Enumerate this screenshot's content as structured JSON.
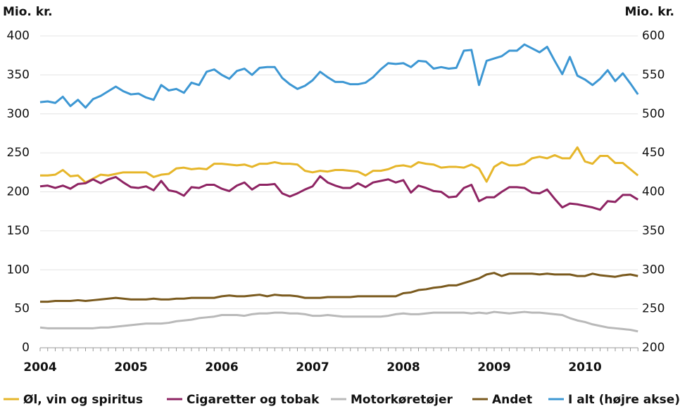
{
  "chart_data": {
    "type": "line",
    "ylabel": "Mio. kr.",
    "y2label": "Mio. kr.",
    "categories": [
      "2004",
      null,
      null,
      null,
      null,
      null,
      null,
      null,
      null,
      null,
      null,
      null,
      "2005",
      null,
      null,
      null,
      null,
      null,
      null,
      null,
      null,
      null,
      null,
      null,
      "2006",
      null,
      null,
      null,
      null,
      null,
      null,
      null,
      null,
      null,
      null,
      null,
      "2007",
      null,
      null,
      null,
      null,
      null,
      null,
      null,
      null,
      null,
      null,
      null,
      "2008",
      null,
      null,
      null,
      null,
      null,
      null,
      null,
      null,
      null,
      null,
      null,
      "2009",
      null,
      null,
      null,
      null,
      null,
      null,
      null,
      null,
      null,
      null,
      null,
      "2010",
      null,
      null,
      null,
      null,
      null,
      null,
      null
    ],
    "ylim": [
      0,
      400
    ],
    "yticks": [
      0,
      50,
      100,
      150,
      200,
      250,
      300,
      350,
      400
    ],
    "y2lim": [
      200,
      600
    ],
    "y2ticks": [
      200,
      250,
      300,
      350,
      400,
      450,
      500,
      550,
      600
    ],
    "grid": true,
    "legend": "bottom",
    "series": [
      {
        "name": "Øl, vin og spiritus",
        "color": "#e6b62a",
        "values": [
          221,
          221,
          222,
          228,
          220,
          221,
          212,
          217,
          222,
          221,
          223,
          225,
          225,
          225,
          225,
          219,
          222,
          223,
          230,
          231,
          229,
          230,
          229,
          236,
          236,
          235,
          234,
          235,
          232,
          236,
          236,
          238,
          236,
          236,
          235,
          227,
          225,
          227,
          226,
          228,
          228,
          227,
          226,
          221,
          227,
          227,
          229,
          233,
          234,
          232,
          238,
          236,
          235,
          231,
          232,
          232,
          231,
          235,
          230,
          213,
          232,
          238,
          234,
          234,
          236,
          243,
          245,
          243,
          247,
          243,
          243,
          257,
          239,
          236,
          246,
          246,
          237,
          237,
          229,
          221
        ]
      },
      {
        "name": "Cigaretter og tobak",
        "color": "#8e2463",
        "values": [
          207,
          208,
          205,
          208,
          204,
          210,
          211,
          216,
          211,
          216,
          219,
          212,
          206,
          205,
          207,
          202,
          214,
          202,
          200,
          195,
          206,
          205,
          209,
          209,
          204,
          201,
          208,
          212,
          203,
          209,
          209,
          210,
          198,
          194,
          198,
          203,
          207,
          220,
          212,
          208,
          205,
          205,
          211,
          206,
          212,
          214,
          216,
          212,
          215,
          199,
          208,
          205,
          201,
          200,
          193,
          194,
          205,
          209,
          188,
          193,
          193,
          200,
          206,
          206,
          205,
          199,
          198,
          203,
          191,
          180,
          185,
          184,
          182,
          180,
          177,
          188,
          187,
          196,
          196,
          190
        ]
      },
      {
        "name": "Motorkøretøjer",
        "color": "#b9b9b9",
        "values": [
          26,
          25,
          25,
          25,
          25,
          25,
          25,
          25,
          26,
          26,
          27,
          28,
          29,
          30,
          31,
          31,
          31,
          32,
          34,
          35,
          36,
          38,
          39,
          40,
          42,
          42,
          42,
          41,
          43,
          44,
          44,
          45,
          45,
          44,
          44,
          43,
          41,
          41,
          42,
          41,
          40,
          40,
          40,
          40,
          40,
          40,
          41,
          43,
          44,
          43,
          43,
          44,
          45,
          45,
          45,
          45,
          45,
          44,
          45,
          44,
          46,
          45,
          44,
          45,
          46,
          45,
          45,
          44,
          43,
          42,
          38,
          35,
          33,
          30,
          28,
          26,
          25,
          24,
          23,
          21
        ]
      },
      {
        "name": "Andet",
        "color": "#7a5a1e",
        "values": [
          59,
          59,
          60,
          60,
          60,
          61,
          60,
          61,
          62,
          63,
          64,
          63,
          62,
          62,
          62,
          63,
          62,
          62,
          63,
          63,
          64,
          64,
          64,
          64,
          66,
          67,
          66,
          66,
          67,
          68,
          66,
          68,
          67,
          67,
          66,
          64,
          64,
          64,
          65,
          65,
          65,
          65,
          66,
          66,
          66,
          66,
          66,
          66,
          70,
          71,
          74,
          75,
          77,
          78,
          80,
          80,
          83,
          86,
          89,
          94,
          96,
          92,
          95,
          95,
          95,
          95,
          94,
          95,
          94,
          94,
          94,
          92,
          92,
          95,
          93,
          92,
          91,
          93,
          94,
          92
        ]
      },
      {
        "name": "I alt (højre akse)",
        "color": "#3d97d3",
        "axis": "y2",
        "values": [
          515,
          516,
          514,
          522,
          510,
          518,
          508,
          519,
          523,
          529,
          535,
          529,
          525,
          526,
          521,
          518,
          537,
          530,
          532,
          527,
          540,
          537,
          554,
          557,
          550,
          545,
          555,
          558,
          550,
          559,
          560,
          560,
          546,
          538,
          532,
          536,
          543,
          554,
          547,
          541,
          541,
          538,
          538,
          540,
          547,
          557,
          565,
          564,
          565,
          560,
          568,
          567,
          558,
          560,
          558,
          559,
          581,
          582,
          537,
          568,
          571,
          574,
          581,
          581,
          589,
          584,
          579,
          586,
          568,
          551,
          573,
          549,
          544,
          537,
          545,
          556,
          542,
          552,
          539,
          525
        ]
      }
    ]
  }
}
